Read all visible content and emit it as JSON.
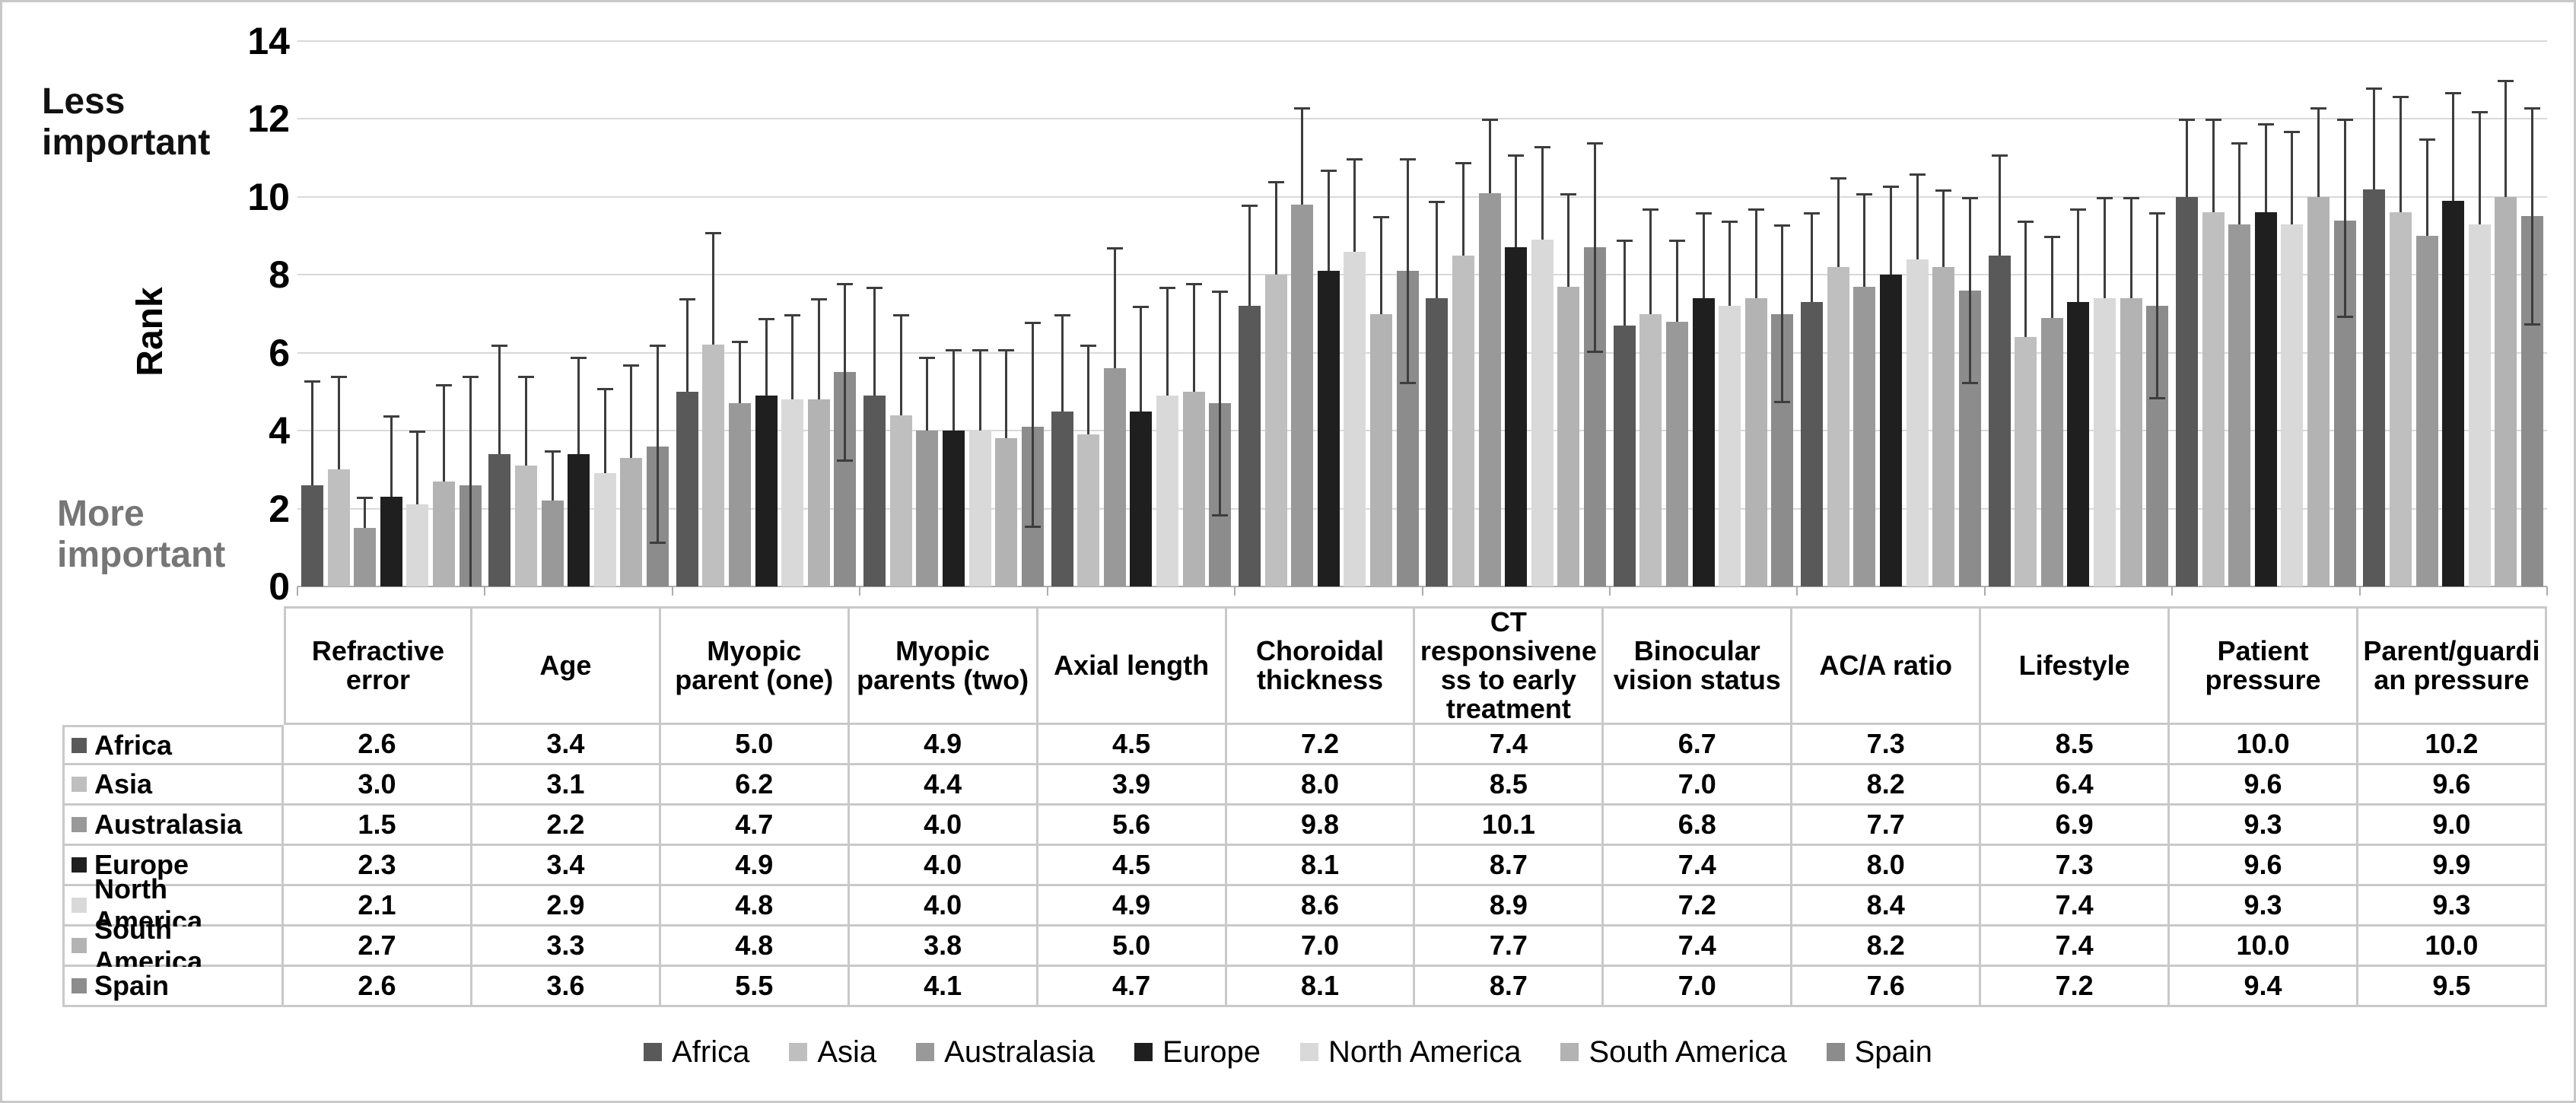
{
  "chart_data": {
    "type": "bar",
    "title": "",
    "ylabel": "Rank",
    "xlabel": "",
    "ylim": [
      0,
      14
    ],
    "ytick_step": 2,
    "yticks": [
      0,
      2,
      4,
      6,
      8,
      10,
      12,
      14
    ],
    "grid": true,
    "legend_position": "bottom",
    "annotations": {
      "top": "Less important",
      "bottom": "More important"
    },
    "categories": [
      "Refractive error",
      "Age",
      "Myopic parent (one)",
      "Myopic parents (two)",
      "Axial length",
      "Choroidal thickness",
      "CT responsivene ss to early treatment",
      "Binocular vision status",
      "AC/A ratio",
      "Lifestyle",
      "Patient pressure",
      "Parent/guardi an pressure"
    ],
    "series": [
      {
        "name": "Africa",
        "color": "#595959",
        "values": [
          2.6,
          3.4,
          5.0,
          4.9,
          4.5,
          7.2,
          7.4,
          6.7,
          7.3,
          8.5,
          10.0,
          10.2
        ],
        "err_hi": [
          5.3,
          6.2,
          7.4,
          7.7,
          7.0,
          9.8,
          9.9,
          8.9,
          9.6,
          11.1,
          12.0,
          12.8
        ],
        "err_lo": null
      },
      {
        "name": "Asia",
        "color": "#bfbfbf",
        "values": [
          3.0,
          3.1,
          6.2,
          4.4,
          3.9,
          8.0,
          8.5,
          7.0,
          8.2,
          6.4,
          9.6,
          9.6
        ],
        "err_hi": [
          5.4,
          5.4,
          9.1,
          7.0,
          6.2,
          10.4,
          10.9,
          9.7,
          10.5,
          9.4,
          12.0,
          12.6
        ],
        "err_lo": null
      },
      {
        "name": "Australasia",
        "color": "#999999",
        "values": [
          1.5,
          2.2,
          4.7,
          4.0,
          5.6,
          9.8,
          10.1,
          6.8,
          7.7,
          6.9,
          9.3,
          9.0
        ],
        "err_hi": [
          2.3,
          3.5,
          6.3,
          5.9,
          8.7,
          12.3,
          12.0,
          8.9,
          10.1,
          9.0,
          11.4,
          11.5
        ],
        "err_lo": null
      },
      {
        "name": "Europe",
        "color": "#1f1f1f",
        "values": [
          2.3,
          3.4,
          4.9,
          4.0,
          4.5,
          8.1,
          8.7,
          7.4,
          8.0,
          7.3,
          9.6,
          9.9
        ],
        "err_hi": [
          4.4,
          5.9,
          6.9,
          6.1,
          7.2,
          10.7,
          11.1,
          9.6,
          10.3,
          9.7,
          11.9,
          12.7
        ],
        "err_lo": null
      },
      {
        "name": "North America",
        "color": "#d9d9d9",
        "values": [
          2.1,
          2.9,
          4.8,
          4.0,
          4.9,
          8.6,
          8.9,
          7.2,
          8.4,
          7.4,
          9.3,
          9.3
        ],
        "err_hi": [
          4.0,
          5.1,
          7.0,
          6.1,
          7.7,
          11.0,
          11.3,
          9.4,
          10.6,
          10.0,
          11.7,
          12.2
        ],
        "err_lo": null
      },
      {
        "name": "South America",
        "color": "#b3b3b3",
        "values": [
          2.7,
          3.3,
          4.8,
          3.8,
          5.0,
          7.0,
          7.7,
          7.4,
          8.2,
          7.4,
          10.0,
          10.0
        ],
        "err_hi": [
          5.2,
          5.7,
          7.4,
          6.1,
          7.8,
          9.5,
          10.1,
          9.7,
          10.2,
          10.0,
          12.3,
          13.0
        ],
        "err_lo": null
      },
      {
        "name": "Spain",
        "color": "#8c8c8c",
        "values": [
          2.6,
          3.6,
          5.5,
          4.1,
          4.7,
          8.1,
          8.7,
          7.0,
          7.6,
          7.2,
          9.4,
          9.5
        ],
        "err_hi": [
          5.4,
          6.2,
          7.8,
          6.8,
          7.6,
          11.0,
          11.4,
          9.3,
          10.0,
          9.6,
          12.0,
          12.3
        ],
        "err_lo": [
          0.0,
          1.1,
          3.2,
          1.5,
          1.8,
          5.2,
          6.0,
          4.7,
          5.2,
          4.8,
          6.9,
          6.7
        ]
      }
    ]
  }
}
